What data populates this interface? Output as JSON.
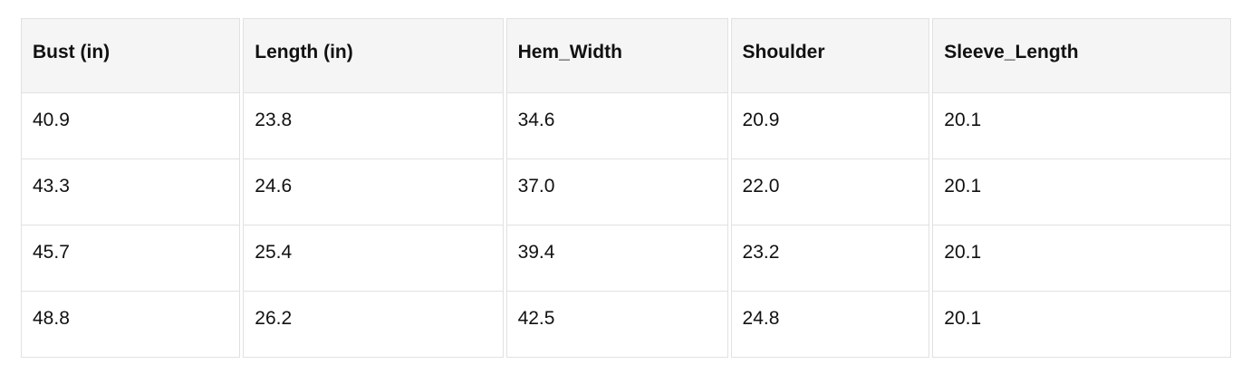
{
  "chart_data": {
    "type": "table",
    "title": "",
    "columns": [
      "Bust (in)",
      "Length (in)",
      "Hem_Width",
      "Shoulder",
      "Sleeve_Length"
    ],
    "rows": [
      [
        "40.9",
        "23.8",
        "34.6",
        "20.9",
        "20.1"
      ],
      [
        "43.3",
        "24.6",
        "37.0",
        "22.0",
        "20.1"
      ],
      [
        "45.7",
        "25.4",
        "39.4",
        "23.2",
        "20.1"
      ],
      [
        "48.8",
        "26.2",
        "42.5",
        "24.8",
        "20.1"
      ]
    ]
  },
  "colors": {
    "header_background": "#f5f5f5",
    "border": "#e1e1e1",
    "text": "#111111",
    "page_background": "#ffffff"
  }
}
